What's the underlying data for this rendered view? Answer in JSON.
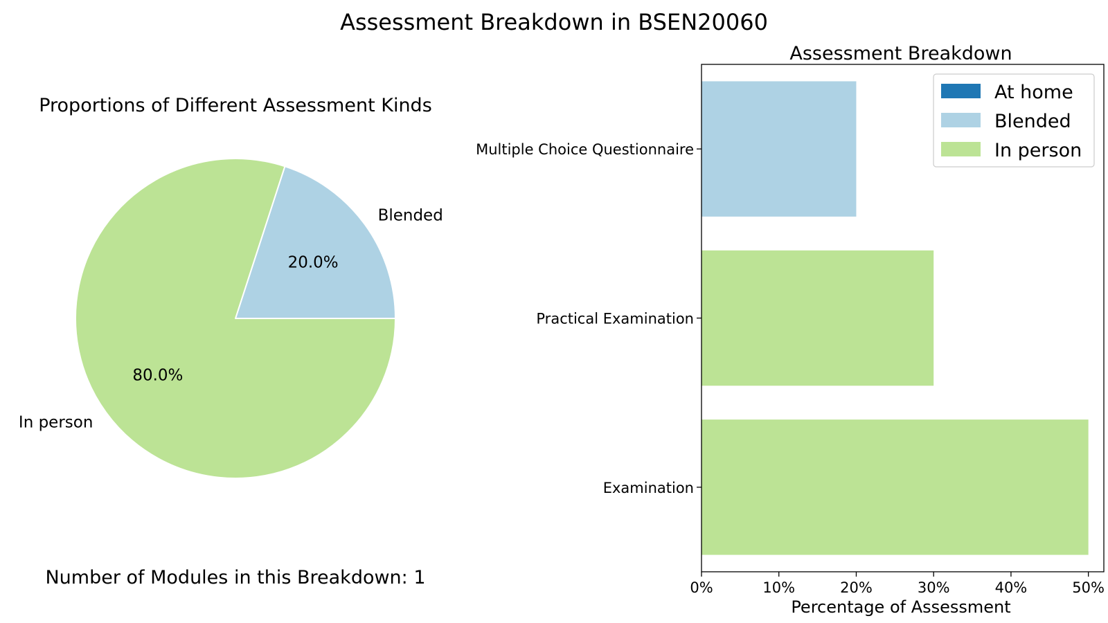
{
  "figure": {
    "suptitle": "Assessment Breakdown in BSEN20060",
    "footnote": "Number of Modules in this Breakdown: 1"
  },
  "chart_data": [
    {
      "type": "pie",
      "title": "Proportions of Different Assessment Kinds",
      "slices": [
        {
          "label": "Blended",
          "value": 20.0,
          "pct_label": "20.0%",
          "color": "#aed2e4"
        },
        {
          "label": "In person",
          "value": 80.0,
          "pct_label": "80.0%",
          "color": "#bce395"
        }
      ],
      "start_angle": 0,
      "slice_border_color": "#ffffff"
    },
    {
      "type": "bar",
      "orientation": "horizontal",
      "title": "Assessment Breakdown",
      "xlabel": "Percentage of Assessment",
      "ylabel": "",
      "xlim": [
        0,
        52
      ],
      "xticks": [
        0,
        10,
        20,
        30,
        40,
        50
      ],
      "xtick_labels": [
        "0%",
        "10%",
        "20%",
        "30%",
        "40%",
        "50%"
      ],
      "grid": false,
      "legend_position": "top-right",
      "categories": [
        "Multiple Choice Questionnaire",
        "Practical Examination",
        "Examination"
      ],
      "series": [
        {
          "name": "At home",
          "color": "#1f77b4",
          "values": [
            0,
            0,
            0
          ]
        },
        {
          "name": "Blended",
          "color": "#aed2e4",
          "values": [
            20,
            0,
            0
          ]
        },
        {
          "name": "In person",
          "color": "#bce395",
          "values": [
            0,
            30,
            50
          ]
        }
      ]
    }
  ]
}
